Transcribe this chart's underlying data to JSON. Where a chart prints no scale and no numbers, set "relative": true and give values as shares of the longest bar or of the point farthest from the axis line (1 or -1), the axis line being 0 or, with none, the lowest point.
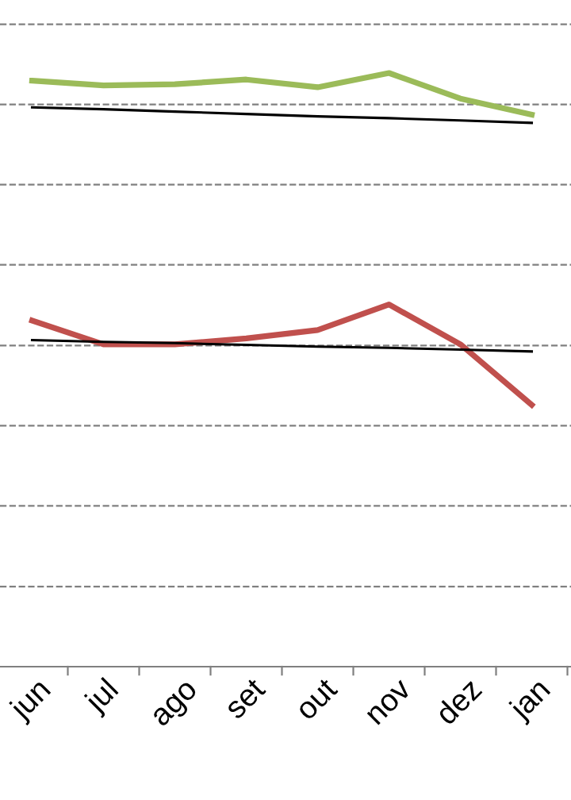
{
  "chart_data": {
    "type": "line",
    "relative": true,
    "line_style": "solid",
    "marker": "none",
    "ref_lines": [
      {
        "axis": "y",
        "value": 0.135,
        "color": "#808080",
        "line_style": "dashed"
      },
      {
        "axis": "y",
        "value": 0.271,
        "color": "#808080",
        "line_style": "dashed"
      },
      {
        "axis": "y",
        "value": 0.406,
        "color": "#808080",
        "line_style": "dashed"
      },
      {
        "axis": "y",
        "value": 0.541,
        "color": "#808080",
        "line_style": "dashed"
      },
      {
        "axis": "y",
        "value": 0.677,
        "color": "#808080",
        "line_style": "dashed"
      },
      {
        "axis": "y",
        "value": 0.812,
        "color": "#808080",
        "line_style": "dashed"
      },
      {
        "axis": "y",
        "value": 0.947,
        "color": "#808080",
        "line_style": "dashed"
      },
      {
        "axis": "y",
        "value": 1.082,
        "color": "#808080",
        "line_style": "dashed"
      }
    ],
    "categories": [
      "jun",
      "jul",
      "ago",
      "set",
      "out",
      "nov",
      "dez",
      "jan"
    ],
    "series": [
      {
        "color": "#9bbb59",
        "values": [
          0.987,
          0.979,
          0.981,
          0.989,
          0.976,
          1.0,
          0.957,
          0.93
        ]
      },
      {
        "color": "#c0504d",
        "values": [
          0.583,
          0.543,
          0.543,
          0.553,
          0.567,
          0.61,
          0.543,
          0.441
        ]
      },
      {
        "color": "#000000",
        "values": [
          0.942,
          0.939,
          0.935,
          0.931,
          0.927,
          0.924,
          0.92,
          0.916
        ]
      },
      {
        "color": "#000000",
        "values": [
          0.55,
          0.547,
          0.545,
          0.542,
          0.539,
          0.537,
          0.534,
          0.531
        ]
      }
    ]
  }
}
